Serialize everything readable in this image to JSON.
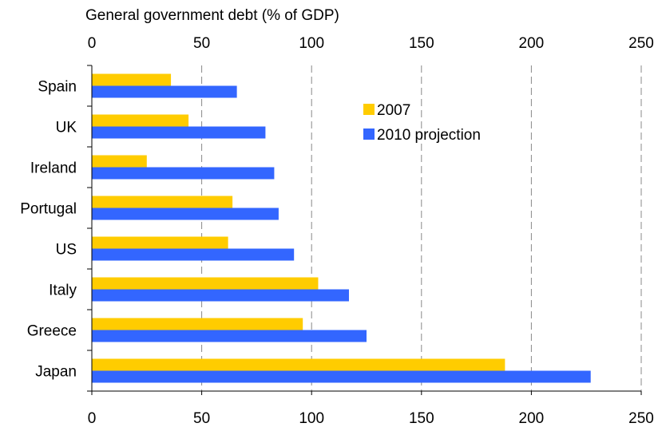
{
  "chart_data": {
    "type": "bar",
    "orientation": "horizontal",
    "title": "General government debt  (% of GDP)",
    "categories": [
      "Spain",
      "UK",
      "Ireland",
      "Portugal",
      "US",
      "Italy",
      "Greece",
      "Japan"
    ],
    "series": [
      {
        "name": "2007",
        "color": "#FFCC00",
        "values": [
          36,
          44,
          25,
          64,
          62,
          103,
          96,
          188
        ]
      },
      {
        "name": "2010 projection",
        "color": "#3366FF",
        "values": [
          66,
          79,
          83,
          85,
          92,
          117,
          125,
          227
        ]
      }
    ],
    "xlim": [
      0,
      250
    ],
    "xticks": [
      0,
      50,
      100,
      150,
      200,
      250
    ],
    "xtick_labels": [
      "0",
      "50",
      "100",
      "150",
      "200",
      "250"
    ],
    "grid": {
      "vertical": true,
      "style": "dashed"
    },
    "axis_labels_top_and_bottom": true,
    "legend_position": "top-right"
  }
}
